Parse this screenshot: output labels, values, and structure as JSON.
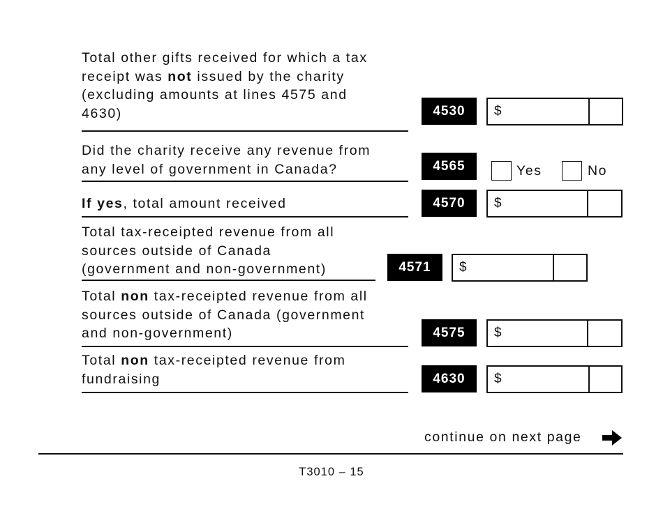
{
  "rows": [
    {
      "line": "4530",
      "text": [
        "Total other gifts received for which a tax",
        "receipt was ",
        "not",
        " issued by the charity",
        "(excluding amounts at lines 4575 and",
        "4630)"
      ],
      "currency": "$"
    },
    {
      "line": "4565",
      "text": [
        "Did the charity receive any revenue from",
        "any level of government in Canada?"
      ],
      "options": [
        "Yes",
        "No"
      ]
    },
    {
      "line": "4570",
      "text": [
        "If yes",
        ", total amount received"
      ],
      "currency": "$"
    },
    {
      "line": "4571",
      "text": [
        "Total tax-receipted revenue from all",
        "sources outside of Canada",
        "(government and non-government)"
      ],
      "currency": "$"
    },
    {
      "line": "4575",
      "text": [
        "Total ",
        "non",
        " tax-receipted revenue from all",
        "sources outside of Canada (government",
        "and non-government)"
      ],
      "currency": "$"
    },
    {
      "line": "4630",
      "text": [
        "Total ",
        "non",
        " tax-receipted revenue from",
        "fundraising"
      ],
      "currency": "$"
    }
  ],
  "footer": {
    "continue": "continue on next page",
    "page": "T3010 – 15"
  }
}
